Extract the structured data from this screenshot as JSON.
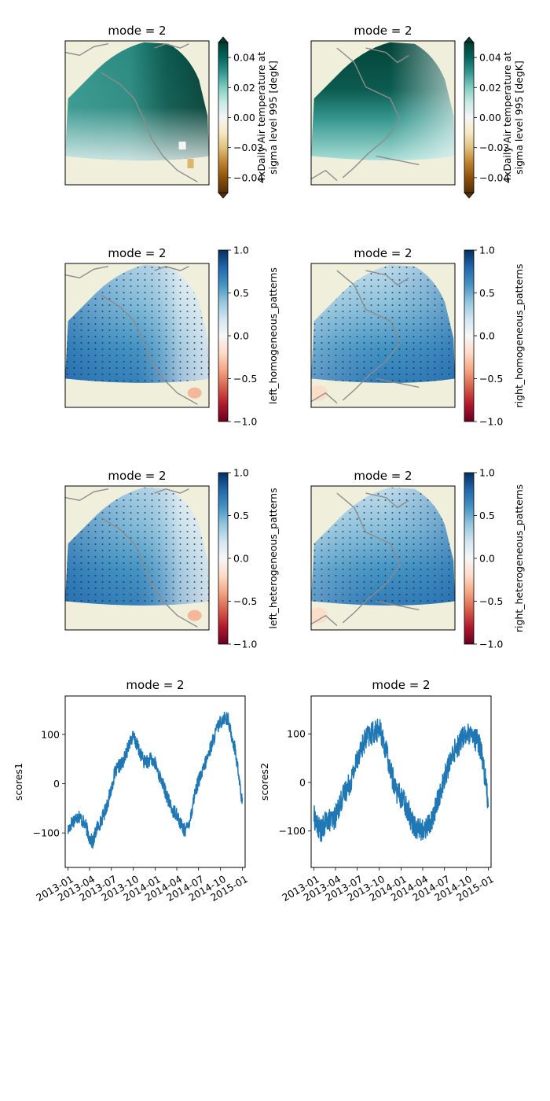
{
  "figure": {
    "background": "#ffffff"
  },
  "panels": [
    {
      "id": "t-left",
      "kind": "map",
      "title": "mode = 2",
      "variant": "temp-left",
      "colorbar": {
        "cmap": "BrBG",
        "range": [
          -0.05,
          0.05
        ],
        "extend": "both",
        "ticks": [
          "0.04",
          "0.02",
          "0.00",
          "−0.02",
          "−0.04"
        ],
        "tick_values": [
          0.04,
          0.02,
          0.0,
          -0.02,
          -0.04
        ],
        "label_lines": [
          "4xDaily Air temperature at",
          "sigma level 995 [degK]"
        ]
      }
    },
    {
      "id": "t-right",
      "kind": "map",
      "title": "mode = 2",
      "variant": "temp-right",
      "colorbar": {
        "cmap": "BrBG",
        "range": [
          -0.05,
          0.05
        ],
        "extend": "both",
        "ticks": [
          "0.04",
          "0.02",
          "0.00",
          "−0.02",
          "−0.04"
        ],
        "tick_values": [
          0.04,
          0.02,
          0.0,
          -0.02,
          -0.04
        ],
        "label_lines": [
          "4xDaily Air temperature at",
          "sigma level 995 [degK]"
        ]
      }
    },
    {
      "id": "hom-left",
      "kind": "map",
      "title": "mode = 2",
      "variant": "hom-left",
      "colorbar": {
        "cmap": "RdBu",
        "range": [
          -1,
          1
        ],
        "extend": "neither",
        "ticks": [
          "1.0",
          "0.5",
          "0.0",
          "−0.5",
          "−1.0"
        ],
        "tick_values": [
          1.0,
          0.5,
          0.0,
          -0.5,
          -1.0
        ],
        "label_lines": [
          "left_homogeneous_patterns"
        ]
      }
    },
    {
      "id": "hom-right",
      "kind": "map",
      "title": "mode = 2",
      "variant": "hom-right",
      "colorbar": {
        "cmap": "RdBu",
        "range": [
          -1,
          1
        ],
        "extend": "neither",
        "ticks": [
          "1.0",
          "0.5",
          "0.0",
          "−0.5",
          "−1.0"
        ],
        "tick_values": [
          1.0,
          0.5,
          0.0,
          -0.5,
          -1.0
        ],
        "label_lines": [
          "right_homogeneous_patterns"
        ]
      }
    },
    {
      "id": "het-left",
      "kind": "map",
      "title": "mode = 2",
      "variant": "het-left",
      "colorbar": {
        "cmap": "RdBu",
        "range": [
          -1,
          1
        ],
        "extend": "neither",
        "ticks": [
          "1.0",
          "0.5",
          "0.0",
          "−0.5",
          "−1.0"
        ],
        "tick_values": [
          1.0,
          0.5,
          0.0,
          -0.5,
          -1.0
        ],
        "label_lines": [
          "left_heterogeneous_patterns"
        ]
      }
    },
    {
      "id": "het-right",
      "kind": "map",
      "title": "mode = 2",
      "variant": "het-right",
      "colorbar": {
        "cmap": "RdBu",
        "range": [
          -1,
          1
        ],
        "extend": "neither",
        "ticks": [
          "1.0",
          "0.5",
          "0.0",
          "−0.5",
          "−1.0"
        ],
        "tick_values": [
          1.0,
          0.5,
          0.0,
          -0.5,
          -1.0
        ],
        "label_lines": [
          "right_heterogeneous_patterns"
        ]
      }
    }
  ],
  "chart_data": [
    {
      "type": "line",
      "title": "mode = 2",
      "ylabel": "scores1",
      "xlabel": "",
      "ylim": [
        -170,
        178
      ],
      "yticks": [
        100,
        0,
        -100
      ],
      "ytick_labels": [
        "100",
        "0",
        "−100"
      ],
      "xlim": [
        "2012-12-20",
        "2015-01-12"
      ],
      "xticks": [
        "2013-01-01",
        "2013-04-01",
        "2013-07-01",
        "2013-10-01",
        "2014-01-01",
        "2014-04-01",
        "2014-07-01",
        "2014-10-01",
        "2015-01-01"
      ],
      "xtick_labels": [
        "2013-01",
        "2013-04",
        "2013-07",
        "2013-10",
        "2014-01",
        "2014-04",
        "2014-07",
        "2014-10",
        "2015-01"
      ],
      "color": "#1f77b4",
      "noise_amplitude": 14,
      "series": [
        {
          "x": [
            "2013-01-01",
            "2013-01-15",
            "2013-02-01",
            "2013-02-15",
            "2013-03-01",
            "2013-03-15",
            "2013-04-01",
            "2013-04-15",
            "2013-05-01",
            "2013-05-15",
            "2013-06-01",
            "2013-06-15",
            "2013-07-01",
            "2013-07-15",
            "2013-08-01",
            "2013-08-15",
            "2013-09-01",
            "2013-09-15",
            "2013-10-01",
            "2013-10-15",
            "2013-11-01",
            "2013-11-15",
            "2013-12-01",
            "2013-12-15",
            "2014-01-01",
            "2014-01-15",
            "2014-02-01",
            "2014-02-15",
            "2014-03-01",
            "2014-03-15",
            "2014-04-01",
            "2014-04-15",
            "2014-05-01",
            "2014-05-15",
            "2014-06-01",
            "2014-06-15",
            "2014-07-01",
            "2014-07-15",
            "2014-08-01",
            "2014-08-15",
            "2014-09-01",
            "2014-09-15",
            "2014-10-01",
            "2014-10-15",
            "2014-11-01",
            "2014-11-15",
            "2014-12-01",
            "2014-12-15",
            "2014-12-31"
          ],
          "values": [
            -95,
            -80,
            -70,
            -65,
            -75,
            -85,
            -110,
            -120,
            -90,
            -80,
            -60,
            -40,
            -10,
            20,
            35,
            40,
            60,
            85,
            95,
            80,
            60,
            45,
            45,
            50,
            40,
            20,
            0,
            -20,
            -40,
            -55,
            -60,
            -80,
            -95,
            -90,
            -60,
            -20,
            5,
            20,
            45,
            65,
            90,
            110,
            125,
            135,
            130,
            100,
            70,
            20,
            -40
          ]
        }
      ]
    },
    {
      "type": "line",
      "title": "mode = 2",
      "ylabel": "scores2",
      "xlabel": "",
      "ylim": [
        -175,
        178
      ],
      "yticks": [
        100,
        0,
        -100
      ],
      "ytick_labels": [
        "100",
        "0",
        "−100"
      ],
      "xlim": [
        "2012-12-20",
        "2015-01-12"
      ],
      "xticks": [
        "2013-01-01",
        "2013-04-01",
        "2013-07-01",
        "2013-10-01",
        "2014-01-01",
        "2014-04-01",
        "2014-07-01",
        "2014-10-01",
        "2015-01-01"
      ],
      "xtick_labels": [
        "2013-01",
        "2013-04",
        "2013-07",
        "2013-10",
        "2014-01",
        "2014-04",
        "2014-07",
        "2014-10",
        "2015-01"
      ],
      "color": "#1f77b4",
      "noise_amplitude": 24,
      "series": [
        {
          "x": [
            "2013-01-01",
            "2013-01-15",
            "2013-02-01",
            "2013-02-15",
            "2013-03-01",
            "2013-03-15",
            "2013-04-01",
            "2013-04-15",
            "2013-05-01",
            "2013-05-15",
            "2013-06-01",
            "2013-06-15",
            "2013-07-01",
            "2013-07-15",
            "2013-08-01",
            "2013-08-15",
            "2013-09-01",
            "2013-09-15",
            "2013-10-01",
            "2013-10-15",
            "2013-11-01",
            "2013-11-15",
            "2013-12-01",
            "2013-12-15",
            "2014-01-01",
            "2014-01-15",
            "2014-02-01",
            "2014-02-15",
            "2014-03-01",
            "2014-03-15",
            "2014-04-01",
            "2014-04-15",
            "2014-05-01",
            "2014-05-15",
            "2014-06-01",
            "2014-06-15",
            "2014-07-01",
            "2014-07-15",
            "2014-08-01",
            "2014-08-15",
            "2014-09-01",
            "2014-09-15",
            "2014-10-01",
            "2014-10-15",
            "2014-11-01",
            "2014-11-15",
            "2014-12-01",
            "2014-12-15",
            "2014-12-31"
          ],
          "values": [
            -70,
            -90,
            -100,
            -85,
            -75,
            -80,
            -70,
            -50,
            -30,
            -15,
            0,
            20,
            50,
            70,
            85,
            95,
            100,
            105,
            110,
            90,
            60,
            30,
            0,
            -20,
            -30,
            -40,
            -60,
            -80,
            -90,
            -95,
            -100,
            -90,
            -85,
            -70,
            -40,
            -20,
            10,
            30,
            50,
            70,
            80,
            95,
            100,
            95,
            90,
            85,
            70,
            20,
            -40
          ]
        }
      ]
    }
  ]
}
